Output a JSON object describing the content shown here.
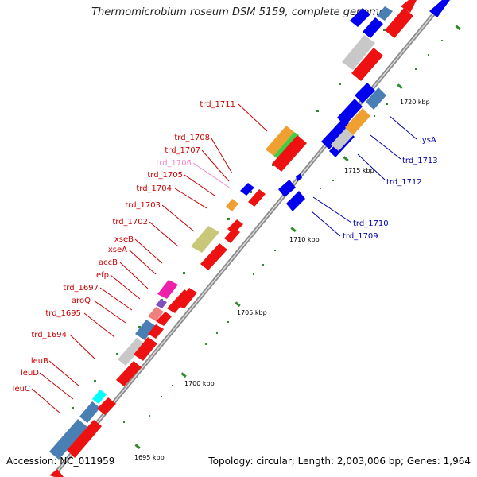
{
  "title": "Thermomicrobium roseum DSM 5159, complete genome",
  "footer": {
    "accession": "Accession: NC_011959",
    "info": "Topology: circular; Length: 2,003,006 bp; Genes: 1,964"
  },
  "colors": {
    "backbone": "#9a9a9a",
    "tick": "#2e8b2e",
    "left_label": "#cc0000",
    "right_label": "#0000aa",
    "faded_label": "#ee88cc"
  },
  "scale_labels": [
    "1695 kbp",
    "1700 kbp",
    "1705 kbp",
    "1710 kbp",
    "1715 kbp",
    "1720 kbp"
  ],
  "left_labels": [
    "trd_1711",
    "trd_1708",
    "trd_1707",
    "trd_1706",
    "trd_1705",
    "trd_1704",
    "trd_1703",
    "trd_1702",
    "xseB",
    "xseA",
    "accB",
    "efp",
    "trd_1697",
    "aroQ",
    "trd_1695",
    "trd_1694",
    "leuB",
    "leuD",
    "leuC"
  ],
  "right_labels": [
    "lysA",
    "trd_1713",
    "trd_1712",
    "trd_1710",
    "trd_1709"
  ]
}
